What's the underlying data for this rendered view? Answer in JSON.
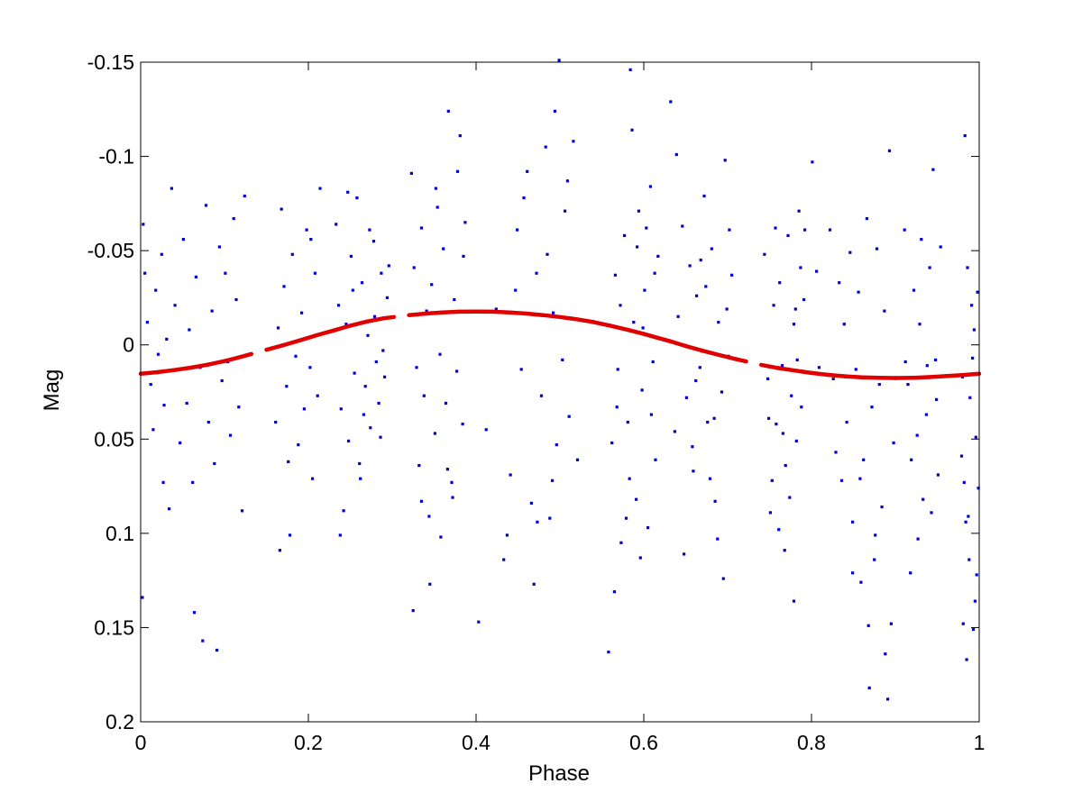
{
  "chart_data": {
    "type": "scatter",
    "title": "",
    "xlabel": "Phase",
    "ylabel": "Mag",
    "xlim": [
      0,
      1
    ],
    "ylim": [
      -0.15,
      0.2
    ],
    "y_reversed": true,
    "grid": false,
    "legend": "none",
    "x_ticks": [
      0,
      0.2,
      0.4,
      0.6,
      0.8,
      1
    ],
    "x_tick_labels": [
      "0",
      "0.2",
      "0.4",
      "0.6",
      "0.8",
      "1"
    ],
    "y_ticks": [
      -0.15,
      -0.1,
      -0.05,
      0,
      0.05,
      0.1,
      0.15,
      0.2
    ],
    "y_tick_labels": [
      "-0.15",
      "-0.1",
      "-0.05",
      "0",
      "0.05",
      "0.1",
      "0.15",
      "0.2"
    ],
    "colors": {
      "observations": "#0000cc",
      "model": "#e00000",
      "axes": "#000000"
    },
    "observation_points": [
      [
        0.003,
        -0.064
      ],
      [
        0.005,
        -0.038
      ],
      [
        0.008,
        -0.012
      ],
      [
        0.012,
        0.021
      ],
      [
        0.015,
        0.045
      ],
      [
        0.018,
        -0.029
      ],
      [
        0.021,
        0.005
      ],
      [
        0.025,
        -0.048
      ],
      [
        0.028,
        0.032
      ],
      [
        0.031,
        -0.003
      ],
      [
        0.034,
        0.087
      ],
      [
        0.037,
        -0.083
      ],
      [
        0.041,
        -0.021
      ],
      [
        0.044,
        0.013
      ],
      [
        0.047,
        0.052
      ],
      [
        0.051,
        -0.056
      ],
      [
        0.055,
        0.031
      ],
      [
        0.058,
        -0.008
      ],
      [
        0.062,
        0.073
      ],
      [
        0.066,
        -0.036
      ],
      [
        0.071,
        0.012
      ],
      [
        0.074,
        0.157
      ],
      [
        0.078,
        -0.074
      ],
      [
        0.081,
        0.041
      ],
      [
        0.085,
        -0.018
      ],
      [
        0.088,
        0.063
      ],
      [
        0.091,
        0.162
      ],
      [
        0.094,
        -0.052
      ],
      [
        0.097,
        0.019
      ],
      [
        0.101,
        -0.038
      ],
      [
        0.104,
        0.009
      ],
      [
        0.107,
        0.048
      ],
      [
        0.111,
        -0.067
      ],
      [
        0.114,
        -0.024
      ],
      [
        0.117,
        0.033
      ],
      [
        0.121,
        0.088
      ],
      [
        0.124,
        -0.079
      ],
      [
        0.002,
        0.134
      ],
      [
        0.027,
        0.073
      ],
      [
        0.064,
        0.142
      ],
      [
        0.168,
        -0.072
      ],
      [
        0.171,
        -0.031
      ],
      [
        0.174,
        0.022
      ],
      [
        0.178,
        0.101
      ],
      [
        0.181,
        -0.048
      ],
      [
        0.185,
        0.006
      ],
      [
        0.188,
        0.053
      ],
      [
        0.192,
        -0.017
      ],
      [
        0.195,
        0.034
      ],
      [
        0.198,
        -0.061
      ],
      [
        0.202,
        0.012
      ],
      [
        0.205,
        0.071
      ],
      [
        0.208,
        -0.038
      ],
      [
        0.211,
        0.027
      ],
      [
        0.214,
        -0.083
      ],
      [
        0.161,
        0.041
      ],
      [
        0.164,
        -0.009
      ],
      [
        0.166,
        0.109
      ],
      [
        0.176,
        0.062
      ],
      [
        0.203,
        -0.056
      ],
      [
        0.233,
        -0.064
      ],
      [
        0.236,
        -0.021
      ],
      [
        0.239,
        0.034
      ],
      [
        0.242,
        0.088
      ],
      [
        0.245,
        -0.011
      ],
      [
        0.248,
        0.051
      ],
      [
        0.251,
        -0.047
      ],
      [
        0.255,
        0.015
      ],
      [
        0.258,
        -0.078
      ],
      [
        0.261,
        0.063
      ],
      [
        0.264,
        -0.033
      ],
      [
        0.268,
        0.022
      ],
      [
        0.271,
        -0.005
      ],
      [
        0.274,
        0.044
      ],
      [
        0.278,
        -0.055
      ],
      [
        0.281,
        0.009
      ],
      [
        0.284,
        0.031
      ],
      [
        0.287,
        -0.038
      ],
      [
        0.291,
        0.017
      ],
      [
        0.294,
        -0.025
      ],
      [
        0.238,
        0.101
      ],
      [
        0.247,
        -0.081
      ],
      [
        0.262,
        0.071
      ],
      [
        0.279,
        -0.015
      ],
      [
        0.289,
        0.003
      ],
      [
        0.296,
        -0.042
      ],
      [
        0.253,
        -0.029
      ],
      [
        0.266,
        0.037
      ],
      [
        0.273,
        -0.061
      ],
      [
        0.286,
        0.049
      ],
      [
        0.323,
        -0.091
      ],
      [
        0.326,
        -0.041
      ],
      [
        0.329,
        0.012
      ],
      [
        0.332,
        0.064
      ],
      [
        0.335,
        -0.062
      ],
      [
        0.338,
        0.027
      ],
      [
        0.341,
        -0.018
      ],
      [
        0.344,
        0.091
      ],
      [
        0.347,
        -0.032
      ],
      [
        0.351,
        0.047
      ],
      [
        0.354,
        -0.073
      ],
      [
        0.357,
        0.005
      ],
      [
        0.361,
        -0.051
      ],
      [
        0.364,
        0.031
      ],
      [
        0.367,
        -0.124
      ],
      [
        0.371,
        0.073
      ],
      [
        0.374,
        -0.024
      ],
      [
        0.377,
        0.014
      ],
      [
        0.381,
        -0.111
      ],
      [
        0.384,
        0.042
      ],
      [
        0.387,
        -0.065
      ],
      [
        0.325,
        0.141
      ],
      [
        0.345,
        0.127
      ],
      [
        0.358,
        0.102
      ],
      [
        0.372,
        0.081
      ],
      [
        0.378,
        -0.092
      ],
      [
        0.335,
        0.083
      ],
      [
        0.352,
        -0.083
      ],
      [
        0.366,
        0.066
      ],
      [
        0.385,
        -0.047
      ],
      [
        0.403,
        0.147
      ],
      [
        0.412,
        0.045
      ],
      [
        0.424,
        -0.019
      ],
      [
        0.433,
        0.114
      ],
      [
        0.441,
        0.069
      ],
      [
        0.449,
        -0.061
      ],
      [
        0.454,
        0.013
      ],
      [
        0.461,
        -0.092
      ],
      [
        0.466,
        0.084
      ],
      [
        0.472,
        -0.038
      ],
      [
        0.478,
        0.027
      ],
      [
        0.483,
        -0.105
      ],
      [
        0.488,
        0.092
      ],
      [
        0.492,
        -0.017
      ],
      [
        0.496,
        0.053
      ],
      [
        0.499,
        -0.151
      ],
      [
        0.503,
        0.008
      ],
      [
        0.506,
        -0.071
      ],
      [
        0.511,
        0.038
      ],
      [
        0.516,
        -0.108
      ],
      [
        0.521,
        0.061
      ],
      [
        0.437,
        0.101
      ],
      [
        0.457,
        -0.078
      ],
      [
        0.469,
        0.127
      ],
      [
        0.485,
        -0.048
      ],
      [
        0.494,
        -0.124
      ],
      [
        0.509,
        -0.087
      ],
      [
        0.473,
        0.094
      ],
      [
        0.447,
        -0.029
      ],
      [
        0.491,
        0.072
      ],
      [
        0.558,
        0.163
      ],
      [
        0.562,
        0.052
      ],
      [
        0.566,
        -0.037
      ],
      [
        0.569,
        0.013
      ],
      [
        0.573,
        0.105
      ],
      [
        0.577,
        -0.058
      ],
      [
        0.581,
        0.041
      ],
      [
        0.584,
        -0.146
      ],
      [
        0.588,
        -0.012
      ],
      [
        0.591,
        0.082
      ],
      [
        0.594,
        -0.071
      ],
      [
        0.598,
        0.024
      ],
      [
        0.601,
        -0.029
      ],
      [
        0.605,
        0.097
      ],
      [
        0.608,
        -0.084
      ],
      [
        0.611,
        0.009
      ],
      [
        0.614,
        0.061
      ],
      [
        0.617,
        -0.047
      ],
      [
        0.565,
        0.131
      ],
      [
        0.579,
        0.092
      ],
      [
        0.586,
        -0.114
      ],
      [
        0.596,
        0.113
      ],
      [
        0.603,
        -0.062
      ],
      [
        0.609,
        0.037
      ],
      [
        0.572,
        -0.021
      ],
      [
        0.583,
        0.071
      ],
      [
        0.599,
        -0.009
      ],
      [
        0.613,
        -0.038
      ],
      [
        0.568,
        0.033
      ],
      [
        0.592,
        -0.052
      ],
      [
        0.632,
        -0.129
      ],
      [
        0.637,
        0.046
      ],
      [
        0.641,
        -0.015
      ],
      [
        0.646,
        -0.063
      ],
      [
        0.651,
        0.028
      ],
      [
        0.655,
        -0.042
      ],
      [
        0.659,
        0.067
      ],
      [
        0.663,
        -0.026
      ],
      [
        0.667,
        0.012
      ],
      [
        0.672,
        -0.079
      ],
      [
        0.676,
        0.041
      ],
      [
        0.681,
        -0.051
      ],
      [
        0.685,
        0.083
      ],
      [
        0.689,
        -0.012
      ],
      [
        0.693,
        0.025
      ],
      [
        0.697,
        -0.098
      ],
      [
        0.701,
        0.006
      ],
      [
        0.705,
        -0.037
      ],
      [
        0.639,
        -0.101
      ],
      [
        0.648,
        0.111
      ],
      [
        0.658,
        0.054
      ],
      [
        0.668,
        -0.045
      ],
      [
        0.679,
        0.071
      ],
      [
        0.688,
        0.103
      ],
      [
        0.695,
        0.124
      ],
      [
        0.702,
        -0.061
      ],
      [
        0.662,
        0.019
      ],
      [
        0.674,
        -0.031
      ],
      [
        0.684,
        0.039
      ],
      [
        0.699,
        -0.019
      ],
      [
        0.744,
        -0.048
      ],
      [
        0.748,
        0.018
      ],
      [
        0.751,
        0.089
      ],
      [
        0.755,
        -0.021
      ],
      [
        0.758,
        0.042
      ],
      [
        0.762,
        -0.033
      ],
      [
        0.765,
        0.011
      ],
      [
        0.769,
        0.064
      ],
      [
        0.772,
        -0.058
      ],
      [
        0.776,
        0.027
      ],
      [
        0.779,
        -0.011
      ],
      [
        0.782,
        0.051
      ],
      [
        0.785,
        -0.071
      ],
      [
        0.788,
        0.033
      ],
      [
        0.791,
        -0.024
      ],
      [
        0.779,
        0.136
      ],
      [
        0.768,
        0.109
      ],
      [
        0.761,
        0.098
      ],
      [
        0.787,
        -0.041
      ],
      [
        0.753,
        0.072
      ],
      [
        0.801,
        -0.097
      ],
      [
        0.806,
        -0.039
      ],
      [
        0.809,
        0.012
      ],
      [
        0.774,
        0.081
      ],
      [
        0.757,
        -0.062
      ],
      [
        0.783,
        0.008
      ],
      [
        0.749,
        0.039
      ],
      [
        0.792,
        -0.061
      ],
      [
        0.766,
        0.047
      ],
      [
        0.781,
        -0.019
      ],
      [
        0.822,
        -0.061
      ],
      [
        0.826,
        0.018
      ],
      [
        0.829,
        0.057
      ],
      [
        0.833,
        -0.033
      ],
      [
        0.836,
        0.072
      ],
      [
        0.839,
        -0.011
      ],
      [
        0.842,
        0.041
      ],
      [
        0.846,
        -0.049
      ],
      [
        0.849,
        0.094
      ],
      [
        0.853,
        0.013
      ],
      [
        0.856,
        -0.028
      ],
      [
        0.859,
        0.126
      ],
      [
        0.862,
        0.061
      ],
      [
        0.866,
        -0.067
      ],
      [
        0.869,
        0.182
      ],
      [
        0.872,
        0.033
      ],
      [
        0.875,
        0.114
      ],
      [
        0.878,
        -0.051
      ],
      [
        0.881,
        0.021
      ],
      [
        0.884,
        0.086
      ],
      [
        0.887,
        -0.018
      ],
      [
        0.891,
        0.188
      ],
      [
        0.893,
        -0.103
      ],
      [
        0.895,
        0.148
      ],
      [
        0.898,
        0.052
      ],
      [
        0.849,
        0.121
      ],
      [
        0.858,
        0.071
      ],
      [
        0.868,
        0.149
      ],
      [
        0.876,
        0.101
      ],
      [
        0.888,
        0.164
      ],
      [
        0.911,
        -0.061
      ],
      [
        0.915,
        0.021
      ],
      [
        0.919,
        0.061
      ],
      [
        0.922,
        -0.029
      ],
      [
        0.926,
        0.048
      ],
      [
        0.929,
        -0.011
      ],
      [
        0.933,
        0.082
      ],
      [
        0.937,
        0.037
      ],
      [
        0.941,
        -0.041
      ],
      [
        0.945,
        -0.093
      ],
      [
        0.948,
        0.008
      ],
      [
        0.951,
        0.069
      ],
      [
        0.954,
        -0.052
      ],
      [
        0.918,
        0.121
      ],
      [
        0.927,
        0.103
      ],
      [
        0.938,
        0.011
      ],
      [
        0.943,
        0.089
      ],
      [
        0.912,
        0.009
      ],
      [
        0.931,
        -0.056
      ],
      [
        0.949,
        0.029
      ],
      [
        0.979,
        0.059
      ],
      [
        0.981,
        0.148
      ],
      [
        0.983,
        -0.111
      ],
      [
        0.985,
        0.167
      ],
      [
        0.987,
        0.091
      ],
      [
        0.989,
        0.028
      ],
      [
        0.991,
        -0.021
      ],
      [
        0.993,
        0.151
      ],
      [
        0.995,
        0.136
      ],
      [
        0.998,
        -0.028
      ],
      [
        0.999,
        0.076
      ],
      [
        0.982,
        0.073
      ],
      [
        0.986,
        -0.041
      ],
      [
        0.988,
        0.114
      ],
      [
        0.992,
        0.007
      ],
      [
        0.996,
        0.049
      ],
      [
        0.984,
        0.094
      ],
      [
        0.994,
        -0.008
      ],
      [
        0.997,
        0.122
      ],
      [
        0.98,
        0.017
      ]
    ],
    "model_curve": [
      [
        0.0,
        0.0153
      ],
      [
        0.02,
        0.0145
      ],
      [
        0.04,
        0.0134
      ],
      [
        0.06,
        0.0121
      ],
      [
        0.08,
        0.0105
      ],
      [
        0.1,
        0.0086
      ],
      [
        0.12,
        0.0063
      ],
      [
        0.15,
        0.0026
      ],
      [
        0.17,
        0.0002
      ],
      [
        0.19,
        -0.0024
      ],
      [
        0.21,
        -0.0051
      ],
      [
        0.23,
        -0.0076
      ],
      [
        0.25,
        -0.0102
      ],
      [
        0.27,
        -0.0124
      ],
      [
        0.29,
        -0.0141
      ],
      [
        0.32,
        -0.0158
      ],
      [
        0.34,
        -0.0166
      ],
      [
        0.36,
        -0.0172
      ],
      [
        0.38,
        -0.0176
      ],
      [
        0.4,
        -0.0177
      ],
      [
        0.42,
        -0.0176
      ],
      [
        0.44,
        -0.0172
      ],
      [
        0.46,
        -0.0166
      ],
      [
        0.48,
        -0.0158
      ],
      [
        0.5,
        -0.0148
      ],
      [
        0.52,
        -0.0136
      ],
      [
        0.54,
        -0.0121
      ],
      [
        0.56,
        -0.0102
      ],
      [
        0.58,
        -0.0081
      ],
      [
        0.6,
        -0.0058
      ],
      [
        0.62,
        -0.0033
      ],
      [
        0.63,
        -0.0021
      ],
      [
        0.65,
        0.0006
      ],
      [
        0.67,
        0.0031
      ],
      [
        0.69,
        0.0054
      ],
      [
        0.71,
        0.0076
      ],
      [
        0.74,
        0.0106
      ],
      [
        0.76,
        0.0123
      ],
      [
        0.78,
        0.0136
      ],
      [
        0.8,
        0.0149
      ],
      [
        0.82,
        0.0159
      ],
      [
        0.84,
        0.0167
      ],
      [
        0.86,
        0.0172
      ],
      [
        0.88,
        0.0175
      ],
      [
        0.9,
        0.0176
      ],
      [
        0.92,
        0.0175
      ],
      [
        0.94,
        0.0171
      ],
      [
        0.96,
        0.0166
      ],
      [
        0.98,
        0.016
      ],
      [
        1.0,
        0.0153
      ]
    ]
  }
}
